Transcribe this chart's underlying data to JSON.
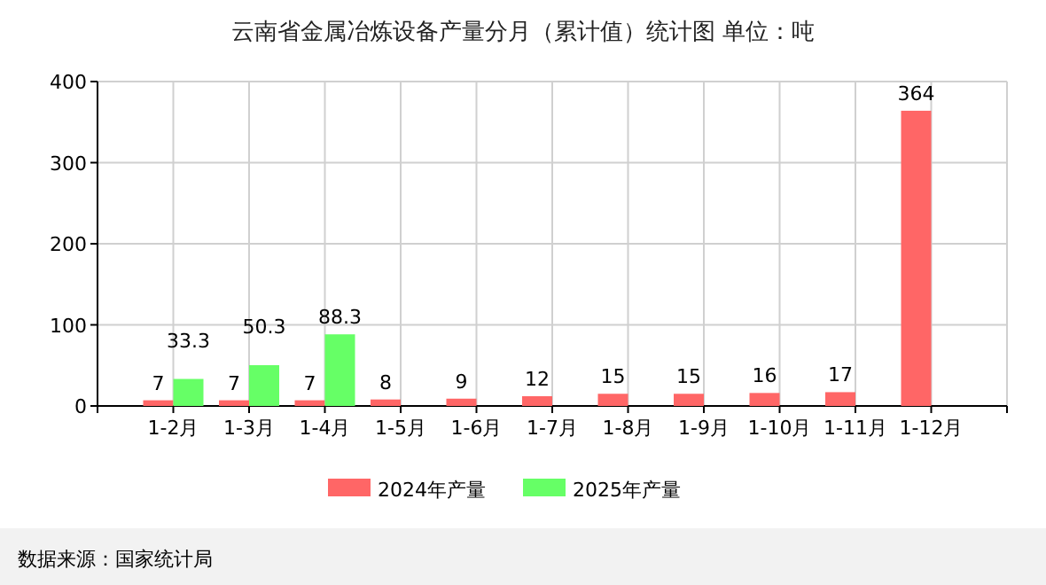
{
  "chart_data": {
    "type": "bar",
    "title": "云南省金属冶炼设备产量分月（累计值）统计图 单位：吨",
    "categories": [
      "1-2月",
      "1-3月",
      "1-4月",
      "1-5月",
      "1-6月",
      "1-7月",
      "1-8月",
      "1-9月",
      "1-10月",
      "1-11月",
      "1-12月"
    ],
    "series": [
      {
        "name": "2024年产量",
        "color": "#ff6666",
        "values": [
          7,
          7,
          7,
          8,
          9,
          12,
          15,
          15,
          16,
          17,
          364
        ]
      },
      {
        "name": "2025年产量",
        "color": "#66ff66",
        "values": [
          33.3,
          50.3,
          88.3,
          null,
          null,
          null,
          null,
          null,
          null,
          null,
          null
        ]
      }
    ],
    "ylim": [
      0,
      400
    ],
    "yticks": [
      0,
      100,
      200,
      300,
      400
    ],
    "grid": true,
    "legend": "bottom",
    "data_labels": true,
    "annotations": [
      "数据来源：国家统计局"
    ]
  }
}
